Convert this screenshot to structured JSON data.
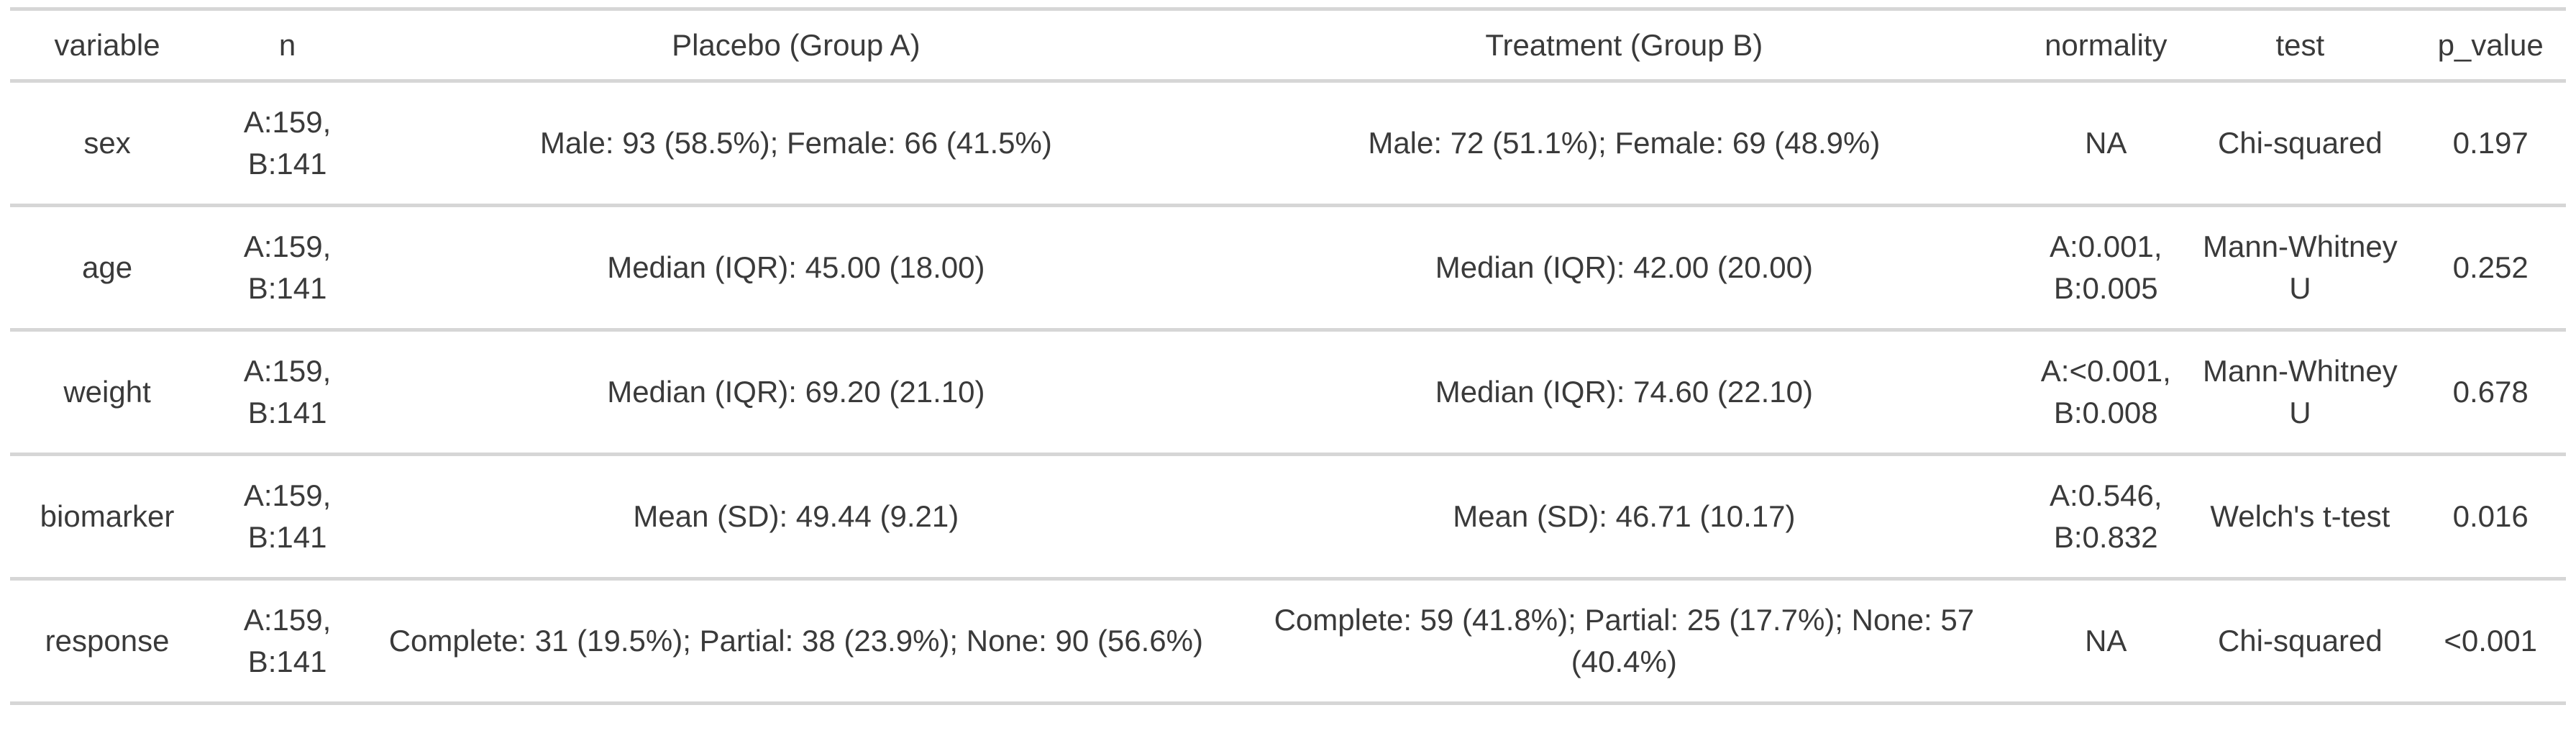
{
  "table": {
    "columns": [
      {
        "key": "variable",
        "label": "variable"
      },
      {
        "key": "n",
        "label": "n"
      },
      {
        "key": "group_a",
        "label": "Placebo (Group A)"
      },
      {
        "key": "group_b",
        "label": "Treatment (Group B)"
      },
      {
        "key": "normality",
        "label": "normality"
      },
      {
        "key": "test",
        "label": "test"
      },
      {
        "key": "p_value",
        "label": "p_value"
      }
    ],
    "rows": [
      {
        "variable": "sex",
        "n": "A:159, B:141",
        "group_a": "Male: 93 (58.5%); Female: 66 (41.5%)",
        "group_b": "Male: 72 (51.1%); Female: 69 (48.9%)",
        "normality": "NA",
        "test": "Chi-squared",
        "p_value": "0.197"
      },
      {
        "variable": "age",
        "n": "A:159, B:141",
        "group_a": "Median (IQR): 45.00 (18.00)",
        "group_b": "Median (IQR): 42.00 (20.00)",
        "normality": "A:0.001, B:0.005",
        "test": "Mann-Whitney U",
        "p_value": "0.252"
      },
      {
        "variable": "weight",
        "n": "A:159, B:141",
        "group_a": "Median (IQR): 69.20 (21.10)",
        "group_b": "Median (IQR): 74.60 (22.10)",
        "normality": "A:<0.001, B:0.008",
        "test": "Mann-Whitney U",
        "p_value": "0.678"
      },
      {
        "variable": "biomarker",
        "n": "A:159, B:141",
        "group_a": "Mean (SD): 49.44 (9.21)",
        "group_b": "Mean (SD): 46.71 (10.17)",
        "normality": "A:0.546, B:0.832",
        "test": "Welch's t-test",
        "p_value": "0.016"
      },
      {
        "variable": "response",
        "n": "A:159, B:141",
        "group_a": "Complete: 31 (19.5%); Partial: 38 (23.9%); None: 90 (56.6%)",
        "group_b": "Complete: 59 (41.8%); Partial: 25 (17.7%); None: 57 (40.4%)",
        "normality": "NA",
        "test": "Chi-squared",
        "p_value": "<0.001"
      }
    ],
    "colors": {
      "border": "#d6d6d6",
      "text": "#3a3a3a",
      "background": "#ffffff"
    }
  },
  "chart_data": {
    "type": "table",
    "title": "",
    "columns": [
      "variable",
      "n",
      "Placebo (Group A)",
      "Treatment (Group B)",
      "normality",
      "test",
      "p_value"
    ],
    "rows": [
      [
        "sex",
        "A:159, B:141",
        "Male: 93 (58.5%); Female: 66 (41.5%)",
        "Male: 72 (51.1%); Female: 69 (48.9%)",
        "NA",
        "Chi-squared",
        "0.197"
      ],
      [
        "age",
        "A:159, B:141",
        "Median (IQR): 45.00 (18.00)",
        "Median (IQR): 42.00 (20.00)",
        "A:0.001, B:0.005",
        "Mann-Whitney U",
        "0.252"
      ],
      [
        "weight",
        "A:159, B:141",
        "Median (IQR): 69.20 (21.10)",
        "Median (IQR): 74.60 (22.10)",
        "A:<0.001, B:0.008",
        "Mann-Whitney U",
        "0.678"
      ],
      [
        "biomarker",
        "A:159, B:141",
        "Mean (SD): 49.44 (9.21)",
        "Mean (SD): 46.71 (10.17)",
        "A:0.546, B:0.832",
        "Welch's t-test",
        "0.016"
      ],
      [
        "response",
        "A:159, B:141",
        "Complete: 31 (19.5%); Partial: 38 (23.9%); None: 90 (56.6%)",
        "Complete: 59 (41.8%); Partial: 25 (17.7%); None: 57 (40.4%)",
        "NA",
        "Chi-squared",
        "<0.001"
      ]
    ]
  }
}
